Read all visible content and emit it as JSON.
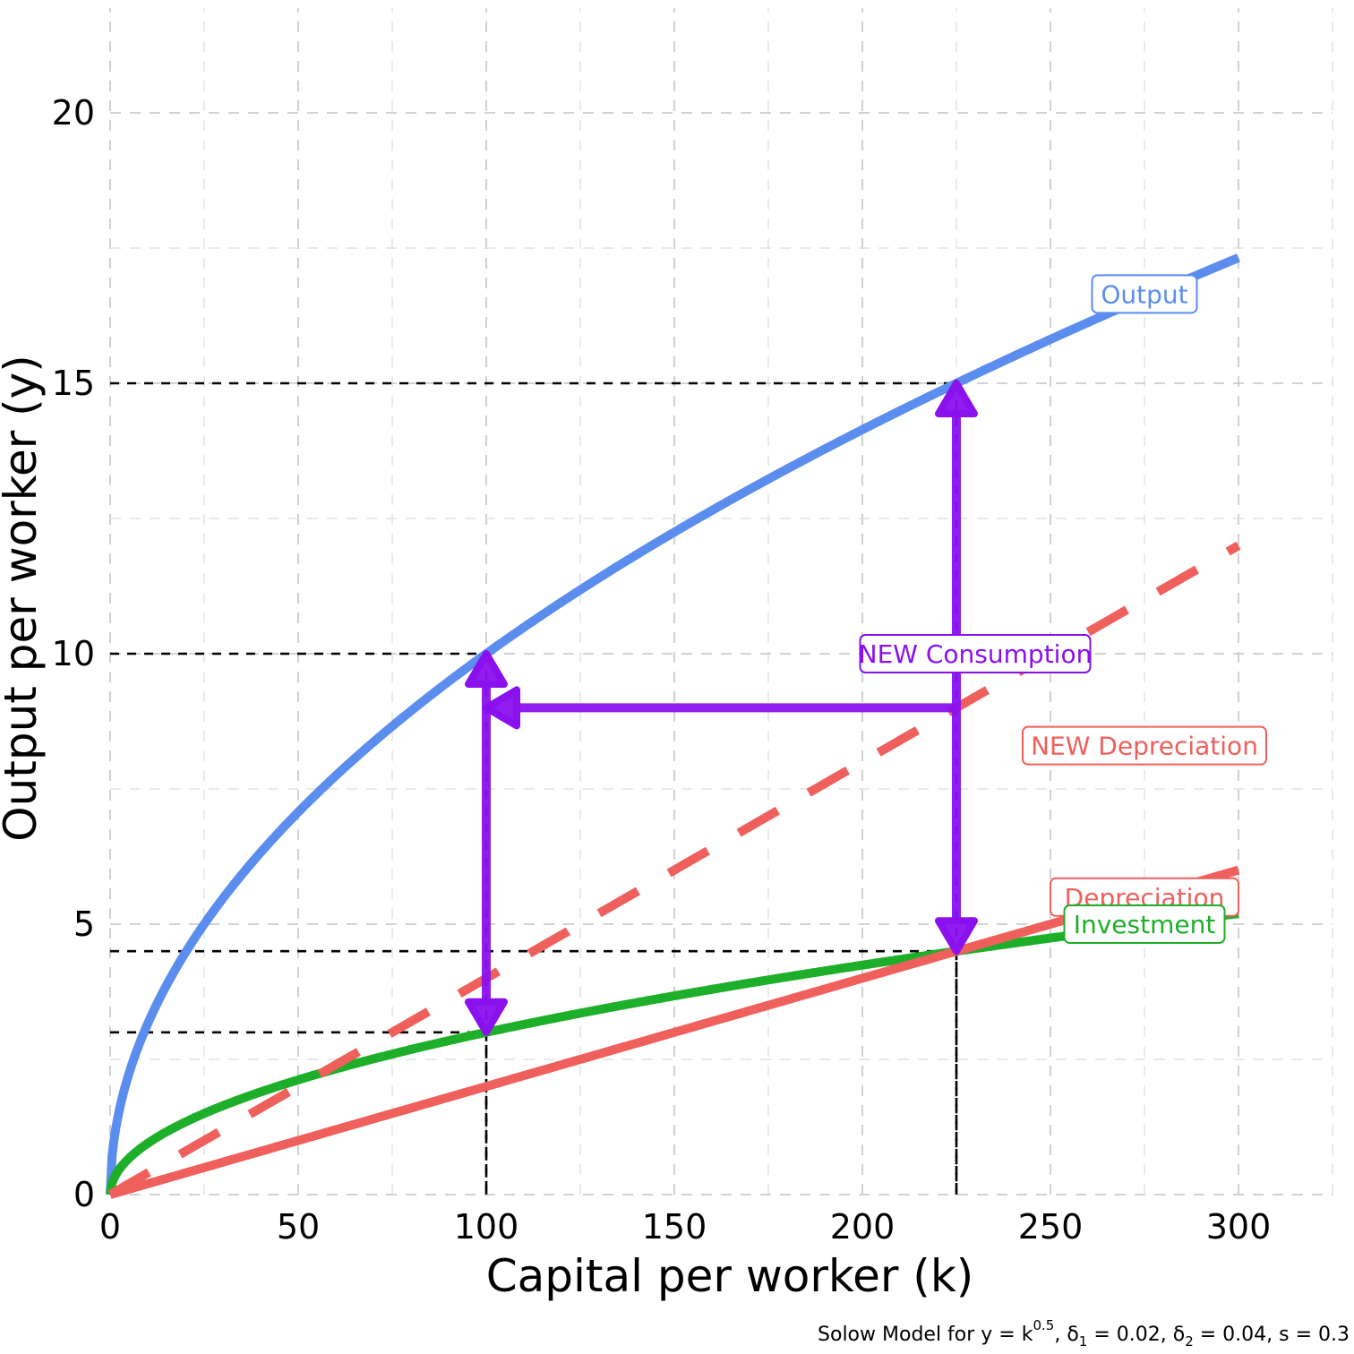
{
  "chart_data": {
    "type": "line",
    "xlabel": "Capital per worker (k)",
    "ylabel": "Output per worker (y)",
    "xlim": [
      0,
      325
    ],
    "ylim": [
      0,
      22
    ],
    "x_ticks": [
      0,
      50,
      100,
      150,
      200,
      250,
      300
    ],
    "y_ticks": [
      0,
      5,
      10,
      15,
      20
    ],
    "grid": true,
    "caption": {
      "prefix": "Solow Model for y = k",
      "exp": "0.5",
      "part2": ", δ",
      "sub1": "1",
      "part3": " = 0.02, δ",
      "sub2": "2",
      "part4": " = 0.04, s = 0.3"
    },
    "parameters": {
      "alpha": 0.5,
      "delta1": 0.02,
      "delta2": 0.04,
      "s": 0.3,
      "k_max": 300
    },
    "series": [
      {
        "name": "Output",
        "formula": "k^0.5",
        "color": "#5B8DEF",
        "style": "solid",
        "label_at": [
          275,
          16.65
        ]
      },
      {
        "name": "Investment",
        "formula": "0.3*k^0.5",
        "color": "#1EAF2A",
        "style": "solid",
        "label_at": [
          275,
          5.0
        ]
      },
      {
        "name": "Depreciation",
        "formula": "0.02*k",
        "color": "#EF5F5B",
        "style": "solid",
        "label_at": [
          275,
          5.5
        ]
      },
      {
        "name": "NEW Depreciation",
        "formula": "0.04*k",
        "color": "#EF5F5B",
        "style": "dashed",
        "label_at": [
          275,
          8.3
        ]
      }
    ],
    "reference_lines": [
      {
        "x": 225,
        "y": 15
      },
      {
        "x": 100,
        "y": 10
      },
      {
        "x": 225,
        "y": 4.5
      },
      {
        "x": 100,
        "y": 3
      }
    ],
    "annotations": {
      "consumption_label": "NEW Consumption",
      "consumption_label_at": [
        230,
        10
      ],
      "arrow_color": "#8A10EE",
      "arrows": [
        {
          "from": [
            225,
            9
          ],
          "to": [
            225,
            15
          ]
        },
        {
          "from": [
            225,
            9
          ],
          "to": [
            225,
            4.5
          ]
        },
        {
          "from": [
            225,
            9
          ],
          "to": [
            100,
            9
          ]
        },
        {
          "from": [
            100,
            9
          ],
          "to": [
            100,
            10
          ]
        },
        {
          "from": [
            100,
            9
          ],
          "to": [
            100,
            3
          ]
        }
      ]
    }
  }
}
